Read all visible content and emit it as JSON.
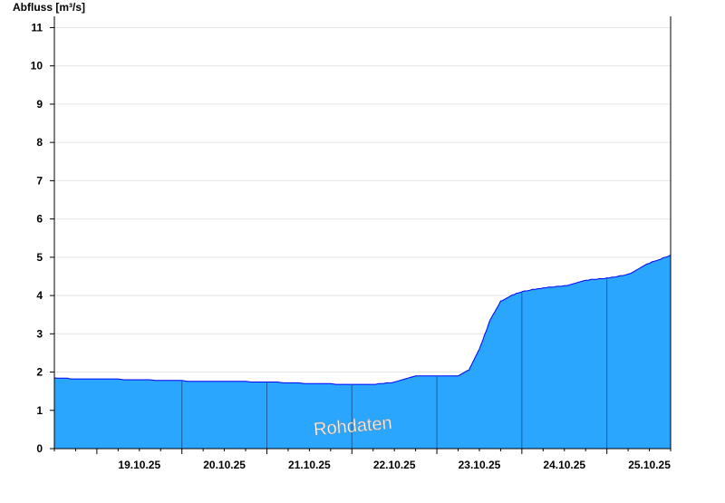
{
  "chart_data": {
    "type": "area",
    "ylabel": "Abfluss [m³/s]",
    "watermark": "Rohdaten",
    "ylim": [
      0,
      11.2
    ],
    "yticks": [
      "0",
      "1",
      "2",
      "3",
      "4",
      "5",
      "6",
      "7",
      "8",
      "9",
      "10",
      "11"
    ],
    "xlim": [
      "2025-10-18 12:00",
      "2025-10-25 18:00"
    ],
    "xtick_labels": [
      "19.10.25",
      "20.10.25",
      "21.10.25",
      "22.10.25",
      "23.10.25",
      "24.10.25",
      "25.10.25"
    ],
    "grid": true,
    "fill_color": "#2aa6ff",
    "line_color": "#0000ff",
    "x": [
      "2025-10-18 12:00",
      "2025-10-18 18:00",
      "2025-10-19 00:00",
      "2025-10-19 12:00",
      "2025-10-20 00:00",
      "2025-10-20 12:00",
      "2025-10-21 00:00",
      "2025-10-21 12:00",
      "2025-10-22 00:00",
      "2025-10-22 06:00",
      "2025-10-22 12:00",
      "2025-10-22 18:00",
      "2025-10-23 00:00",
      "2025-10-23 06:00",
      "2025-10-23 09:00",
      "2025-10-23 12:00",
      "2025-10-23 15:00",
      "2025-10-23 18:00",
      "2025-10-23 21:00",
      "2025-10-24 00:00",
      "2025-10-24 06:00",
      "2025-10-24 12:00",
      "2025-10-24 18:00",
      "2025-10-25 00:00",
      "2025-10-25 06:00",
      "2025-10-25 12:00",
      "2025-10-25 18:00"
    ],
    "y": [
      1.85,
      1.82,
      1.82,
      1.8,
      1.77,
      1.76,
      1.74,
      1.7,
      1.68,
      1.68,
      1.73,
      1.9,
      1.9,
      1.9,
      2.05,
      2.6,
      3.35,
      3.85,
      4.0,
      4.1,
      4.2,
      4.25,
      4.4,
      4.45,
      4.55,
      4.85,
      5.05
    ]
  }
}
